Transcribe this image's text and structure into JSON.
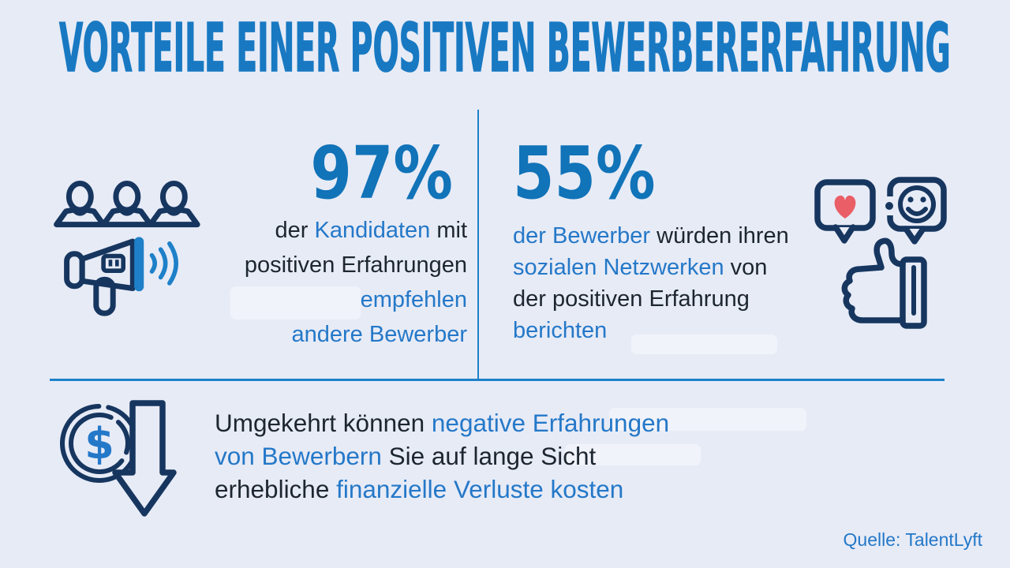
{
  "title": "VORTEILE EINER POSITIVEN BEWERBERERFAHRUNG",
  "source": "Quelle: TalentLyft",
  "colors": {
    "background": "#e7ebf6",
    "title_blue": "#1879c2",
    "number_blue": "#1173b8",
    "accent_blue": "#2478c8",
    "dark_text": "#1d2630",
    "icon_navy": "#16365f",
    "heart_red": "#ea5f67",
    "divider_blue": "#1e80c8"
  },
  "stats": {
    "left": {
      "value": "97%",
      "icons": [
        "people-group-icon",
        "megaphone-icon"
      ],
      "lines": [
        [
          {
            "t": "der ",
            "c": "dark"
          },
          {
            "t": "Kandidaten",
            "c": "blue"
          },
          {
            "t": " mit",
            "c": "dark"
          }
        ],
        [
          {
            "t": "positiven Erfahrungen",
            "c": "dark"
          }
        ],
        [
          {
            "t": "empfehlen",
            "c": "blue"
          }
        ],
        [
          {
            "t": "andere Bewerber",
            "c": "blue"
          }
        ]
      ]
    },
    "right": {
      "value": "55%",
      "icons": [
        "heart-message-icon",
        "smiley-message-icon",
        "thumbs-up-icon"
      ],
      "lines": [
        [
          {
            "t": "der Bewerber",
            "c": "blue"
          },
          {
            "t": " würden ihren",
            "c": "dark"
          }
        ],
        [
          {
            "t": "sozialen Netzwerken",
            "c": "blue"
          },
          {
            "t": " von",
            "c": "dark"
          }
        ],
        [
          {
            "t": "der positiven Erfahrung",
            "c": "dark"
          }
        ],
        [
          {
            "t": "berichten",
            "c": "blue"
          }
        ]
      ]
    }
  },
  "footer_stat": {
    "icon": "money-loss-icon",
    "dollar_glyph": "$",
    "lines": [
      [
        {
          "t": "Umgekehrt können ",
          "c": "dark"
        },
        {
          "t": "negative Erfahrungen",
          "c": "blue"
        }
      ],
      [
        {
          "t": "von Bewerbern",
          "c": "blue"
        },
        {
          "t": " Sie auf lange Sicht",
          "c": "dark"
        }
      ],
      [
        {
          "t": "erhebliche ",
          "c": "dark"
        },
        {
          "t": "finanzielle Verluste kosten",
          "c": "blue"
        }
      ]
    ]
  }
}
